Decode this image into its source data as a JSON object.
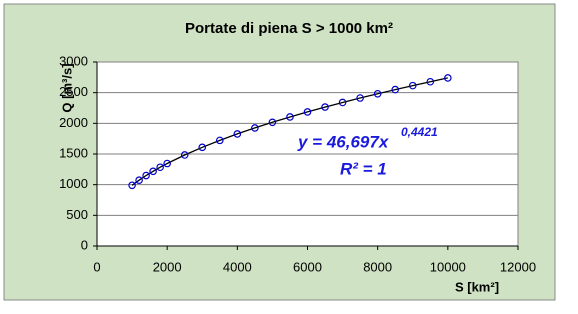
{
  "chart_data": {
    "type": "line",
    "title": "Portate di piena S > 1000 km²",
    "x_label": "S [km²]",
    "y_label": "Q [m³/s]",
    "annotations": [
      "y = 46,697x",
      "0,4421",
      "R² = 1"
    ],
    "x": [
      1000,
      1200,
      1400,
      1600,
      1800,
      2000,
      2500,
      3000,
      3500,
      4000,
      4500,
      5000,
      5500,
      6000,
      6500,
      7000,
      7500,
      8000,
      8500,
      9000,
      9500,
      10000
    ],
    "series": [
      {
        "color": "#0000cc",
        "line_color": "#000000",
        "values": [
          990,
          1073,
          1149,
          1218,
          1284,
          1345,
          1484,
          1609,
          1722,
          1827,
          1925,
          2017,
          2104,
          2186,
          2265,
          2340,
          2413,
          2482,
          2550,
          2615,
          2678,
          2740
        ]
      }
    ],
    "xlim": [
      0,
      12000
    ],
    "xticks": [
      0,
      2000,
      4000,
      6000,
      8000,
      10000,
      12000
    ],
    "ylim": [
      0,
      3000
    ],
    "yticks": [
      0,
      500,
      1000,
      1500,
      2000,
      2500,
      3000
    ],
    "grid": true
  }
}
